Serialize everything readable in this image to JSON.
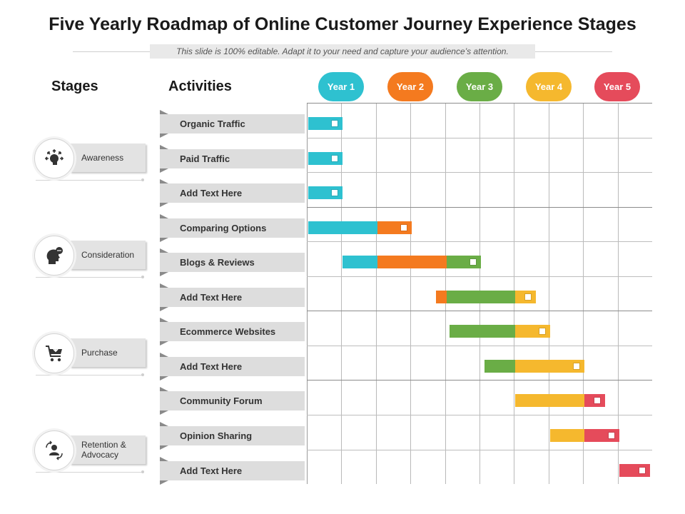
{
  "title": "Five Yearly Roadmap of Online Customer Journey Experience Stages",
  "subtitle": "This slide is 100% editable. Adapt it to your need and capture your audience’s attention.",
  "headers": {
    "stages": "Stages",
    "activities": "Activities"
  },
  "colors": {
    "year1": "#2ec1d0",
    "year2": "#f47a1f",
    "year3": "#6aad46",
    "year4": "#f5b82e",
    "year5": "#e54b5b"
  },
  "years": [
    {
      "label": "Year 1",
      "color": "#2ec1d0"
    },
    {
      "label": "Year 2",
      "color": "#f47a1f"
    },
    {
      "label": "Year 3",
      "color": "#6aad46"
    },
    {
      "label": "Year 4",
      "color": "#f5b82e"
    },
    {
      "label": "Year 5",
      "color": "#e54b5b"
    }
  ],
  "stages": [
    {
      "label": "Awareness",
      "icon": "head-with-arrows-icon"
    },
    {
      "label": "Consideration",
      "icon": "head-thinking-icon"
    },
    {
      "label": "Purchase",
      "icon": "shopping-cart-icon"
    },
    {
      "label": "Retention & Advocacy",
      "icon": "user-cycle-icon"
    }
  ],
  "chart_data": {
    "type": "gantt",
    "time_unit": "half-year",
    "periods": 10,
    "activities": [
      {
        "name": "Organic Traffic",
        "segments": [
          {
            "start": 0.0,
            "end": 1.0,
            "color": "#2ec1d0"
          }
        ]
      },
      {
        "name": "Paid Traffic",
        "segments": [
          {
            "start": 0.0,
            "end": 1.0,
            "color": "#2ec1d0"
          }
        ]
      },
      {
        "name": "Add Text Here",
        "segments": [
          {
            "start": 0.0,
            "end": 1.0,
            "color": "#2ec1d0"
          }
        ]
      },
      {
        "name": "Comparing Options",
        "segments": [
          {
            "start": 0.0,
            "end": 2.0,
            "color": "#2ec1d0"
          },
          {
            "start": 2.0,
            "end": 3.0,
            "color": "#f47a1f"
          }
        ]
      },
      {
        "name": "Blogs & Reviews",
        "segments": [
          {
            "start": 1.0,
            "end": 2.0,
            "color": "#2ec1d0"
          },
          {
            "start": 2.0,
            "end": 4.0,
            "color": "#f47a1f"
          },
          {
            "start": 4.0,
            "end": 5.0,
            "color": "#6aad46"
          }
        ]
      },
      {
        "name": "Add Text Here",
        "segments": [
          {
            "start": 3.7,
            "end": 4.0,
            "color": "#f47a1f"
          },
          {
            "start": 4.0,
            "end": 6.0,
            "color": "#6aad46"
          },
          {
            "start": 6.0,
            "end": 6.6,
            "color": "#f5b82e"
          }
        ]
      },
      {
        "name": "Ecommerce  Websites",
        "segments": [
          {
            "start": 4.1,
            "end": 6.0,
            "color": "#6aad46"
          },
          {
            "start": 6.0,
            "end": 7.0,
            "color": "#f5b82e"
          }
        ]
      },
      {
        "name": "Add Text Here",
        "segments": [
          {
            "start": 5.1,
            "end": 6.0,
            "color": "#6aad46"
          },
          {
            "start": 6.0,
            "end": 8.0,
            "color": "#f5b82e"
          }
        ]
      },
      {
        "name": "Community Forum",
        "segments": [
          {
            "start": 6.0,
            "end": 8.0,
            "color": "#f5b82e"
          },
          {
            "start": 8.0,
            "end": 8.6,
            "color": "#e54b5b"
          }
        ]
      },
      {
        "name": "Opinion Sharing",
        "segments": [
          {
            "start": 7.0,
            "end": 8.0,
            "color": "#f5b82e"
          },
          {
            "start": 8.0,
            "end": 9.0,
            "color": "#e54b5b"
          }
        ]
      },
      {
        "name": "Add Text Here",
        "segments": [
          {
            "start": 9.0,
            "end": 9.9,
            "color": "#e54b5b"
          }
        ]
      }
    ]
  }
}
